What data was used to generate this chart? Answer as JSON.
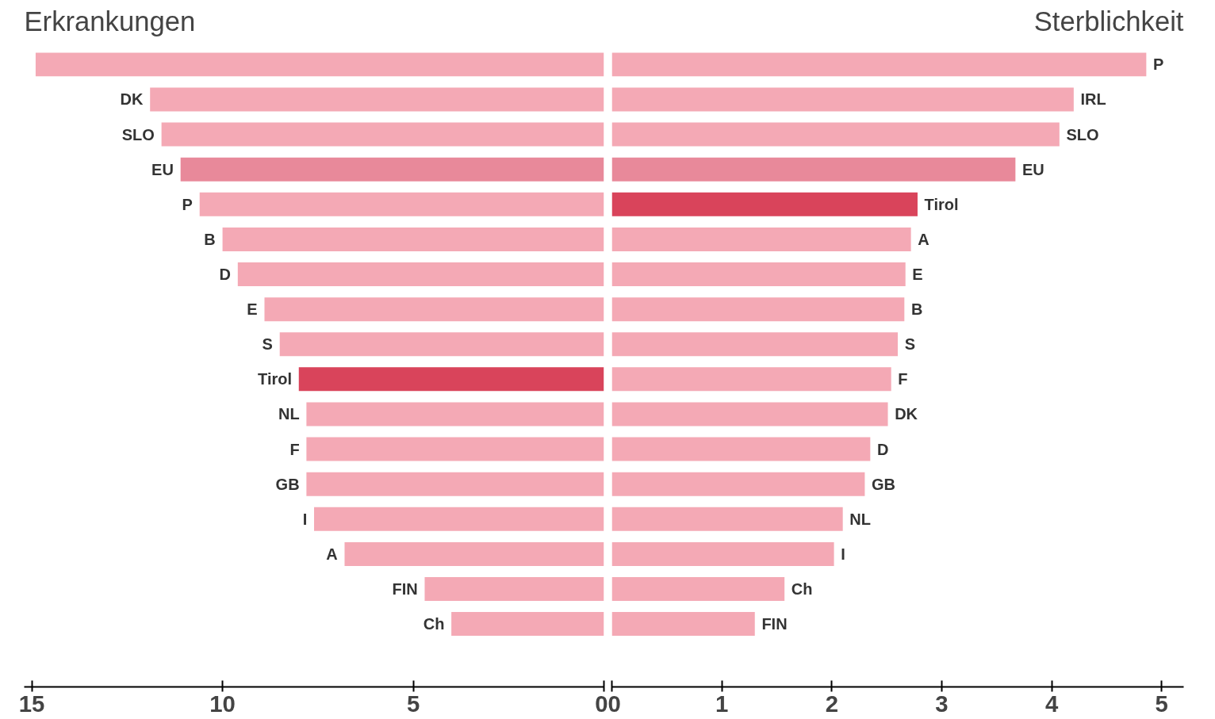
{
  "chart_data": [
    {
      "type": "bar",
      "orientation": "horizontal",
      "title": "Erkrankungen",
      "categories": [
        null,
        "DK",
        "SLO",
        "EU",
        "P",
        "B",
        "D",
        "E",
        "S",
        "Tirol",
        "NL",
        "F",
        "GB",
        "I",
        "A",
        "FIN",
        "Ch"
      ],
      "values": [
        14.9,
        11.9,
        11.6,
        11.1,
        10.6,
        10.0,
        9.6,
        8.9,
        8.5,
        8.0,
        7.8,
        7.8,
        7.8,
        7.6,
        6.8,
        4.7,
        4.0
      ],
      "colors": [
        "#f4a9b5",
        "#f4a9b5",
        "#f4a9b5",
        "#e8899a",
        "#f4a9b5",
        "#f4a9b5",
        "#f4a9b5",
        "#f4a9b5",
        "#f4a9b5",
        "#d9445b",
        "#f4a9b5",
        "#f4a9b5",
        "#f4a9b5",
        "#f4a9b5",
        "#f4a9b5",
        "#f4a9b5",
        "#f4a9b5"
      ],
      "xlim": [
        15.2,
        0
      ],
      "xticks": [
        15,
        10,
        5,
        0
      ],
      "tick_labels": "x",
      "grid": false
    },
    {
      "type": "bar",
      "orientation": "horizontal",
      "title": "Sterblichkeit",
      "categories": [
        "P",
        "IRL",
        "SLO",
        "EU",
        "Tirol",
        "A",
        "E",
        "B",
        "S",
        "F",
        "DK",
        "D",
        "GB",
        "NL",
        "I",
        "Ch",
        "FIN"
      ],
      "values": [
        4.86,
        4.2,
        4.07,
        3.67,
        2.78,
        2.72,
        2.67,
        2.66,
        2.6,
        2.54,
        2.51,
        2.35,
        2.3,
        2.1,
        2.02,
        1.57,
        1.3
      ],
      "colors": [
        "#f4a9b5",
        "#f4a9b5",
        "#f4a9b5",
        "#e8899a",
        "#d9445b",
        "#f4a9b5",
        "#f4a9b5",
        "#f4a9b5",
        "#f4a9b5",
        "#f4a9b5",
        "#f4a9b5",
        "#f4a9b5",
        "#f4a9b5",
        "#f4a9b5",
        "#f4a9b5",
        "#f4a9b5",
        "#f4a9b5"
      ],
      "xlim": [
        0,
        5.2
      ],
      "xticks": [
        0,
        1,
        2,
        3,
        4,
        5
      ],
      "tick_labels": "x",
      "grid": false
    }
  ]
}
